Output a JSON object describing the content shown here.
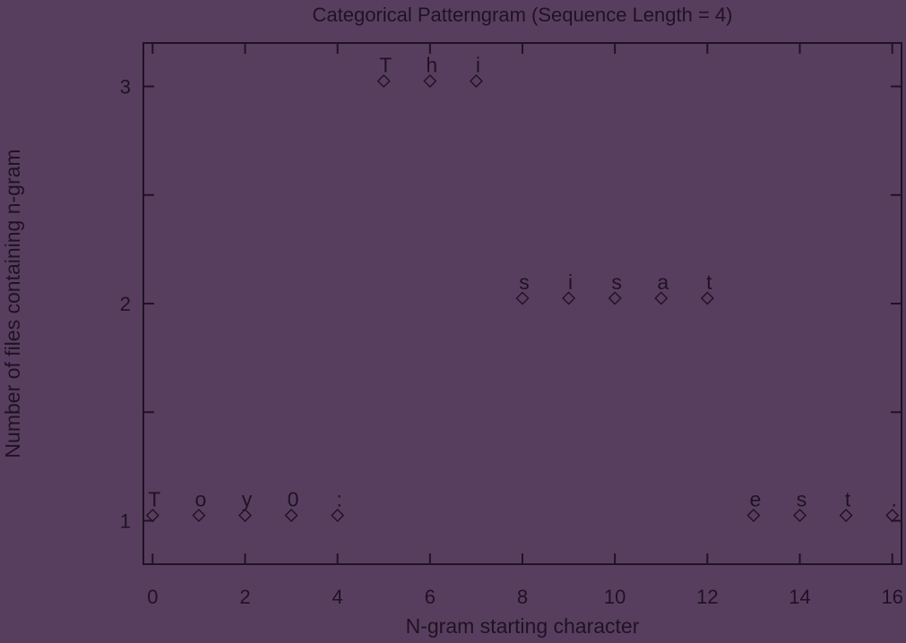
{
  "chart_data": {
    "type": "scatter",
    "title": "Categorical Patterngram (Sequence Length = 4)",
    "xlabel": "N-gram starting character",
    "ylabel": "Number of files containing n-gram",
    "xlim": [
      -0.2,
      16.2
    ],
    "ylim": [
      0.8,
      3.2
    ],
    "x_ticks": [
      0,
      2,
      4,
      6,
      8,
      10,
      12,
      14,
      16
    ],
    "y_ticks": [
      1,
      2,
      3
    ],
    "y_minor_ticks": [
      1.5,
      2.5
    ],
    "grid": false,
    "marker": "diamond",
    "points": [
      {
        "x": 0,
        "y": 1,
        "label": "T"
      },
      {
        "x": 1,
        "y": 1,
        "label": "o"
      },
      {
        "x": 2,
        "y": 1,
        "label": "y"
      },
      {
        "x": 3,
        "y": 1,
        "label": "0"
      },
      {
        "x": 4,
        "y": 1,
        "label": ":"
      },
      {
        "x": 5,
        "y": 3,
        "label": "T"
      },
      {
        "x": 6,
        "y": 3,
        "label": "h"
      },
      {
        "x": 7,
        "y": 3,
        "label": "i"
      },
      {
        "x": 8,
        "y": 2,
        "label": "s"
      },
      {
        "x": 9,
        "y": 2,
        "label": "i"
      },
      {
        "x": 10,
        "y": 2,
        "label": "s"
      },
      {
        "x": 11,
        "y": 2,
        "label": "a"
      },
      {
        "x": 12,
        "y": 2,
        "label": "t"
      },
      {
        "x": 13,
        "y": 1,
        "label": "e"
      },
      {
        "x": 14,
        "y": 1,
        "label": "s"
      },
      {
        "x": 15,
        "y": 1,
        "label": "t"
      },
      {
        "x": 16,
        "y": 1,
        "label": "."
      }
    ]
  }
}
